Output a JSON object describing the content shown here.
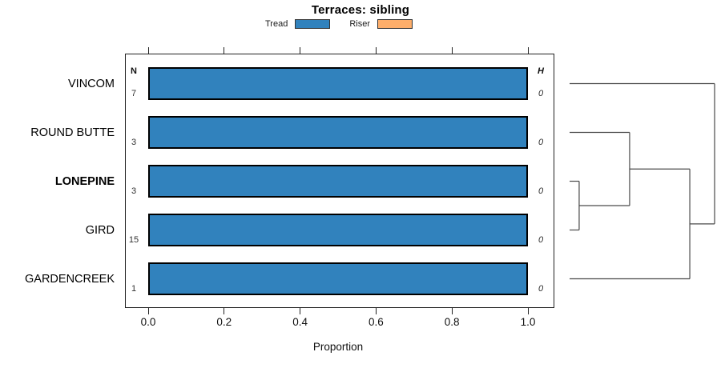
{
  "chart_data": {
    "type": "bar",
    "orientation": "horizontal",
    "title": "Terraces: sibling",
    "xlabel": "Proportion",
    "xticks": [
      0.0,
      0.2,
      0.4,
      0.6,
      0.8,
      1.0
    ],
    "xtick_labels": [
      "0.0",
      "0.2",
      "0.4",
      "0.6",
      "0.8",
      "1.0"
    ],
    "xlim": [
      -0.06,
      1.07
    ],
    "grid": false,
    "legend_position": "top-center",
    "categories": [
      "VINCOM",
      "ROUND BUTTE",
      "LONEPINE",
      "GIRD",
      "GARDENCREEK"
    ],
    "emphasized_category": "LONEPINE",
    "series": [
      {
        "name": "Tread",
        "color": "#3182BD",
        "values": [
          1.0,
          1.0,
          1.0,
          1.0,
          1.0
        ]
      },
      {
        "name": "Riser",
        "color": "#FDAE6B",
        "values": [
          0.0,
          0.0,
          0.0,
          0.0,
          0.0
        ]
      }
    ],
    "n_column": {
      "header": "N",
      "values": [
        "7",
        "3",
        "3",
        "15",
        "1"
      ]
    },
    "h_column": {
      "header": "H",
      "values": [
        "0",
        "0",
        "0",
        "0",
        "0"
      ]
    },
    "dendrogram": {
      "leaf_order": [
        "VINCOM",
        "ROUND BUTTE",
        "LONEPINE",
        "GIRD",
        "GARDENCREEK"
      ],
      "merges": [
        {
          "a": "L2",
          "b": "L3",
          "height": 0.066
        },
        {
          "a": "L1",
          "b": "M0",
          "height": 0.414
        },
        {
          "a": "M1",
          "b": "L4",
          "height": 0.829
        },
        {
          "a": "L0",
          "b": "M2",
          "height": 1.0
        }
      ],
      "line_color": "#4a4a4a"
    }
  }
}
